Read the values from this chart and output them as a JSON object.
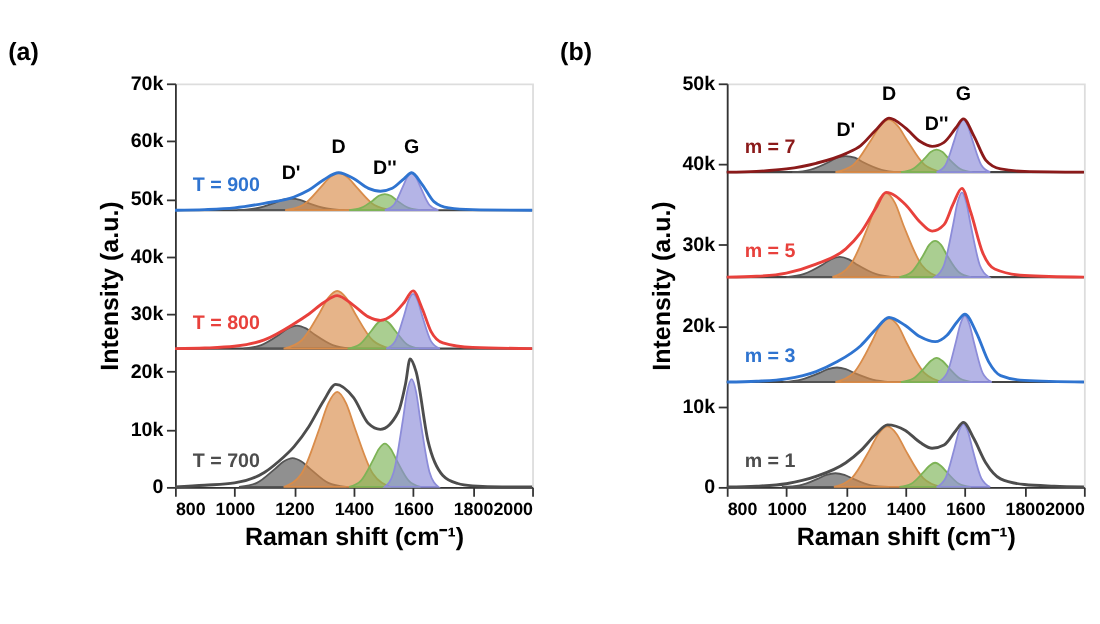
{
  "chart_data": [
    {
      "type": "line",
      "title": "(a)",
      "xlabel": "Raman shift (cm⁻¹)",
      "ylabel": "Intensity (a.u.)",
      "xlim": [
        800,
        2000
      ],
      "xticks": [
        800,
        1000,
        1200,
        1400,
        1600,
        1800,
        2000
      ],
      "ylim": [
        0,
        70000
      ],
      "yticks": [
        0,
        {
          "value": 10000,
          "label": "10k"
        },
        {
          "value": 20000,
          "label": "20k"
        },
        {
          "value": 30000,
          "label": "30k"
        },
        {
          "value": 40000,
          "label": "40k"
        },
        {
          "value": 50000,
          "label": "50k"
        },
        {
          "value": 60000,
          "label": "60k"
        },
        {
          "value": 70000,
          "label": "70k"
        }
      ],
      "grid": false,
      "legend": false,
      "ref_lines": [
        {
          "axis": "y",
          "value": 24000,
          "color": "#444444"
        },
        {
          "axis": "y",
          "value": 48000,
          "color": "#444444"
        }
      ],
      "annotations": [
        {
          "text": "D'",
          "x": 1190,
          "y": 50000
        },
        {
          "text": "D",
          "x": 1350,
          "y": 54500
        },
        {
          "text": "D''",
          "x": 1505,
          "y": 50800
        },
        {
          "text": "G",
          "x": 1595,
          "y": 54500
        }
      ],
      "series": [
        {
          "type": "area",
          "color": "#555555",
          "x": [
            1015,
            1075,
            1135,
            1165,
            1195,
            1225,
            1255,
            1315,
            1375
          ],
          "values": [
            0,
            700,
            3100,
            4400,
            5000,
            4400,
            3100,
            700,
            0
          ]
        },
        {
          "type": "area",
          "color": "#d98c4a",
          "x": [
            1165,
            1225,
            1285,
            1315,
            1345,
            1375,
            1405,
            1465,
            1525
          ],
          "values": [
            0,
            2300,
            10100,
            14500,
            16500,
            14500,
            10100,
            2300,
            0
          ]
        },
        {
          "type": "area",
          "color": "#7db356",
          "x": [
            1385,
            1425,
            1465,
            1485,
            1505,
            1525,
            1545,
            1585,
            1625
          ],
          "values": [
            0,
            1100,
            4600,
            6600,
            7500,
            6600,
            4600,
            1100,
            0
          ]
        },
        {
          "type": "area",
          "color": "#8c8cd9",
          "x": [
            1505,
            1535,
            1565,
            1580,
            1595,
            1610,
            1625,
            1655,
            1685
          ],
          "values": [
            0,
            2600,
            11400,
            16500,
            18700,
            16500,
            11400,
            2600,
            0
          ]
        },
        {
          "type": "line",
          "name": "T = 700",
          "color": "#4d4d4d",
          "x": [
            800,
            900,
            1000,
            1100,
            1150,
            1200,
            1250,
            1300,
            1340,
            1400,
            1450,
            1490,
            1550,
            1575,
            1590,
            1610,
            1650,
            1700,
            1750,
            1800,
            1900,
            2000
          ],
          "values": [
            0,
            300,
            700,
            2500,
            4500,
            7000,
            10500,
            15000,
            17800,
            15500,
            11000,
            10000,
            13000,
            18000,
            22200,
            20000,
            8000,
            2000,
            600,
            200,
            0,
            0
          ]
        },
        {
          "type": "area",
          "color": "#555555",
          "x": [
            1030,
            1090,
            1150,
            1180,
            1210,
            1240,
            1270,
            1330,
            1390
          ],
          "values": [
            24000,
            24600,
            26400,
            27500,
            28000,
            27500,
            26400,
            24600,
            24000
          ]
        },
        {
          "type": "area",
          "color": "#d98c4a",
          "x": [
            1165,
            1225,
            1285,
            1315,
            1345,
            1375,
            1405,
            1465,
            1525
          ],
          "values": [
            24000,
            25400,
            30100,
            32800,
            34000,
            32800,
            30100,
            25400,
            24000
          ]
        },
        {
          "type": "area",
          "color": "#7db356",
          "x": [
            1380,
            1420,
            1460,
            1480,
            1500,
            1520,
            1540,
            1580,
            1620
          ],
          "values": [
            24000,
            24700,
            27100,
            28400,
            29000,
            28400,
            27100,
            24700,
            24000
          ]
        },
        {
          "type": "area",
          "color": "#8c8cd9",
          "x": [
            1510,
            1540,
            1570,
            1585,
            1600,
            1615,
            1630,
            1660,
            1690
          ],
          "values": [
            24000,
            25300,
            29800,
            32400,
            33500,
            32400,
            29800,
            25300,
            24000
          ]
        },
        {
          "type": "line",
          "name": "T = 800",
          "color": "#e8413c",
          "x": [
            800,
            900,
            1000,
            1100,
            1200,
            1250,
            1300,
            1345,
            1400,
            1450,
            1490,
            1530,
            1570,
            1600,
            1630,
            1660,
            1700,
            1800,
            2000
          ],
          "values": [
            24000,
            24100,
            24400,
            25500,
            28300,
            30000,
            32000,
            33200,
            31500,
            29500,
            28900,
            29800,
            32000,
            34000,
            31000,
            27000,
            25000,
            24200,
            24000
          ]
        },
        {
          "type": "area",
          "color": "#555555",
          "x": [
            1010,
            1070,
            1130,
            1160,
            1190,
            1220,
            1250,
            1310,
            1370
          ],
          "values": [
            48000,
            48300,
            49200,
            49800,
            50000,
            49800,
            49200,
            48300,
            48000
          ]
        },
        {
          "type": "area",
          "color": "#d98c4a",
          "x": [
            1170,
            1230,
            1290,
            1320,
            1350,
            1380,
            1410,
            1470,
            1530
          ],
          "values": [
            48000,
            48900,
            52000,
            53700,
            54500,
            53700,
            52000,
            48900,
            48000
          ]
        },
        {
          "type": "area",
          "color": "#7db356",
          "x": [
            1385,
            1425,
            1465,
            1485,
            1505,
            1525,
            1545,
            1585,
            1625
          ],
          "values": [
            48000,
            48400,
            49700,
            50500,
            50800,
            50500,
            49700,
            48400,
            48000
          ]
        },
        {
          "type": "area",
          "color": "#8c8cd9",
          "x": [
            1505,
            1535,
            1565,
            1580,
            1595,
            1610,
            1625,
            1655,
            1685
          ],
          "values": [
            48000,
            48900,
            52000,
            53700,
            54500,
            53700,
            52000,
            48900,
            48000
          ]
        },
        {
          "type": "line",
          "name": "T = 900",
          "color": "#2f74d0",
          "x": [
            800,
            900,
            1000,
            1100,
            1200,
            1250,
            1300,
            1350,
            1400,
            1450,
            1490,
            1530,
            1570,
            1595,
            1630,
            1670,
            1720,
            1800,
            2000
          ],
          "values": [
            48000,
            48100,
            48400,
            49200,
            50300,
            51500,
            53300,
            54500,
            53500,
            51800,
            51300,
            51800,
            53500,
            54500,
            52500,
            49500,
            48400,
            48100,
            48000
          ]
        }
      ]
    },
    {
      "type": "line",
      "title": "(b)",
      "xlabel": "Raman shift (cm⁻¹)",
      "ylabel": "Intensity (a.u.)",
      "xlim": [
        800,
        2000
      ],
      "xticks": [
        800,
        1000,
        1200,
        1400,
        1600,
        1800,
        2000
      ],
      "ylim": [
        0,
        50000
      ],
      "yticks": [
        0,
        {
          "value": 10000,
          "label": "10k"
        },
        {
          "value": 20000,
          "label": "20k"
        },
        {
          "value": 30000,
          "label": "30k"
        },
        {
          "value": 40000,
          "label": "40k"
        },
        {
          "value": 50000,
          "label": "50k"
        }
      ],
      "grid": false,
      "legend": false,
      "ref_lines": [
        {
          "axis": "y",
          "value": 13000,
          "color": "#444444"
        },
        {
          "axis": "y",
          "value": 26000,
          "color": "#444444"
        },
        {
          "axis": "y",
          "value": 39000,
          "color": "#444444"
        }
      ],
      "annotations": [
        {
          "text": "D'",
          "x": 1200,
          "y": 41000
        },
        {
          "text": "D",
          "x": 1345,
          "y": 45500
        },
        {
          "text": "D''",
          "x": 1505,
          "y": 41800
        },
        {
          "text": "G",
          "x": 1595,
          "y": 45500
        }
      ],
      "series": [
        {
          "type": "area",
          "color": "#555555",
          "x": [
            985,
            1045,
            1105,
            1135,
            1165,
            1195,
            1225,
            1285,
            1345
          ],
          "values": [
            0,
            200,
            1000,
            1500,
            1700,
            1500,
            1000,
            200,
            0
          ]
        },
        {
          "type": "area",
          "color": "#d98c4a",
          "x": [
            1160,
            1220,
            1280,
            1310,
            1340,
            1370,
            1400,
            1460,
            1520
          ],
          "values": [
            0,
            1100,
            4600,
            6600,
            7500,
            6600,
            4600,
            1100,
            0
          ]
        },
        {
          "type": "area",
          "color": "#7db356",
          "x": [
            1380,
            1420,
            1460,
            1480,
            1500,
            1520,
            1540,
            1580,
            1620
          ],
          "values": [
            0,
            400,
            1800,
            2600,
            3000,
            2600,
            1800,
            400,
            0
          ]
        },
        {
          "type": "area",
          "color": "#8c8cd9",
          "x": [
            1505,
            1535,
            1565,
            1580,
            1595,
            1610,
            1625,
            1655,
            1685
          ],
          "values": [
            0,
            1100,
            4800,
            6900,
            7800,
            6900,
            4800,
            1100,
            0
          ]
        },
        {
          "type": "line",
          "name": "m = 1",
          "color": "#4d4d4d",
          "x": [
            800,
            900,
            1000,
            1100,
            1200,
            1250,
            1300,
            1340,
            1400,
            1450,
            1490,
            1530,
            1570,
            1595,
            1630,
            1670,
            1720,
            1800,
            1900,
            2000
          ],
          "values": [
            0,
            100,
            400,
            1300,
            3000,
            4500,
            6500,
            7700,
            7000,
            5500,
            4800,
            5200,
            7000,
            8000,
            6000,
            3000,
            1000,
            300,
            100,
            0
          ]
        },
        {
          "type": "area",
          "color": "#555555",
          "x": [
            990,
            1050,
            1110,
            1140,
            1170,
            1200,
            1230,
            1290,
            1350
          ],
          "values": [
            13000,
            13300,
            14100,
            14600,
            14800,
            14600,
            14100,
            13300,
            13000
          ]
        },
        {
          "type": "area",
          "color": "#d98c4a",
          "x": [
            1165,
            1225,
            1285,
            1315,
            1345,
            1375,
            1405,
            1465,
            1525
          ],
          "values": [
            13000,
            14100,
            17800,
            20000,
            20900,
            20000,
            17800,
            14100,
            13000
          ]
        },
        {
          "type": "area",
          "color": "#7db356",
          "x": [
            1385,
            1425,
            1465,
            1485,
            1505,
            1525,
            1545,
            1585,
            1625
          ],
          "values": [
            13000,
            13400,
            14800,
            15600,
            16000,
            15600,
            14800,
            13400,
            13000
          ]
        },
        {
          "type": "area",
          "color": "#8c8cd9",
          "x": [
            1510,
            1540,
            1570,
            1585,
            1600,
            1615,
            1630,
            1660,
            1690
          ],
          "values": [
            13000,
            14100,
            18000,
            20200,
            21200,
            20200,
            18000,
            14100,
            13000
          ]
        },
        {
          "type": "line",
          "name": "m = 3",
          "color": "#2f74d0",
          "x": [
            800,
            900,
            1000,
            1100,
            1170,
            1250,
            1300,
            1345,
            1400,
            1450,
            1500,
            1540,
            1575,
            1600,
            1640,
            1680,
            1720,
            1800,
            2000
          ],
          "values": [
            13000,
            13100,
            13400,
            14300,
            15500,
            17500,
            19500,
            21000,
            20000,
            18600,
            18000,
            18800,
            20500,
            21400,
            19000,
            15500,
            13800,
            13200,
            13000
          ]
        },
        {
          "type": "area",
          "color": "#555555",
          "x": [
            1000,
            1060,
            1120,
            1150,
            1180,
            1210,
            1240,
            1300,
            1360
          ],
          "values": [
            26000,
            26400,
            27500,
            28200,
            28500,
            28200,
            27500,
            26400,
            26000
          ]
        },
        {
          "type": "area",
          "color": "#d98c4a",
          "x": [
            1155,
            1215,
            1275,
            1305,
            1335,
            1365,
            1395,
            1455,
            1515
          ],
          "values": [
            26000,
            27500,
            32300,
            35200,
            36400,
            35200,
            32300,
            27500,
            26000
          ]
        },
        {
          "type": "area",
          "color": "#7db356",
          "x": [
            1380,
            1420,
            1460,
            1480,
            1500,
            1520,
            1540,
            1580,
            1620
          ],
          "values": [
            26000,
            26600,
            28700,
            30000,
            30500,
            30000,
            28700,
            26600,
            26000
          ]
        },
        {
          "type": "area",
          "color": "#8c8cd9",
          "x": [
            1500,
            1530,
            1560,
            1575,
            1590,
            1605,
            1620,
            1650,
            1680
          ],
          "values": [
            26000,
            27500,
            32400,
            35200,
            36500,
            35200,
            32400,
            27500,
            26000
          ]
        },
        {
          "type": "line",
          "name": "m = 5",
          "color": "#e8413c",
          "x": [
            800,
            900,
            1000,
            1100,
            1200,
            1250,
            1300,
            1335,
            1400,
            1450,
            1490,
            1530,
            1560,
            1590,
            1620,
            1660,
            1700,
            1800,
            2000
          ],
          "values": [
            26000,
            26100,
            26500,
            27600,
            29500,
            31500,
            34500,
            36500,
            35000,
            32800,
            31700,
            32500,
            35000,
            37000,
            34000,
            29000,
            27000,
            26200,
            26000
          ]
        },
        {
          "type": "area",
          "color": "#555555",
          "x": [
            1020,
            1080,
            1140,
            1170,
            1200,
            1230,
            1260,
            1320,
            1380
          ],
          "values": [
            39000,
            39300,
            40200,
            40800,
            41000,
            40800,
            40200,
            39300,
            39000
          ]
        },
        {
          "type": "area",
          "color": "#d98c4a",
          "x": [
            1165,
            1225,
            1285,
            1315,
            1345,
            1375,
            1405,
            1465,
            1525
          ],
          "values": [
            39000,
            39900,
            43000,
            44700,
            45500,
            44700,
            43000,
            39900,
            39000
          ]
        },
        {
          "type": "area",
          "color": "#7db356",
          "x": [
            1385,
            1425,
            1465,
            1485,
            1505,
            1525,
            1545,
            1585,
            1625
          ],
          "values": [
            39000,
            39400,
            40700,
            41500,
            41800,
            41500,
            40700,
            39400,
            39000
          ]
        },
        {
          "type": "area",
          "color": "#8c8cd9",
          "x": [
            1505,
            1535,
            1565,
            1580,
            1595,
            1610,
            1625,
            1655,
            1685
          ],
          "values": [
            39000,
            39900,
            43000,
            44700,
            45500,
            44700,
            43000,
            39900,
            39000
          ]
        },
        {
          "type": "line",
          "name": "m = 7",
          "color": "#8b1a1a",
          "x": [
            800,
            900,
            1000,
            1100,
            1200,
            1250,
            1300,
            1345,
            1400,
            1450,
            1490,
            1530,
            1570,
            1595,
            1630,
            1670,
            1720,
            1800,
            2000
          ],
          "values": [
            39000,
            39100,
            39400,
            40100,
            41300,
            42300,
            44200,
            45700,
            44500,
            42800,
            42200,
            42700,
            44500,
            45600,
            43500,
            40500,
            39400,
            39100,
            39000
          ]
        }
      ]
    }
  ]
}
